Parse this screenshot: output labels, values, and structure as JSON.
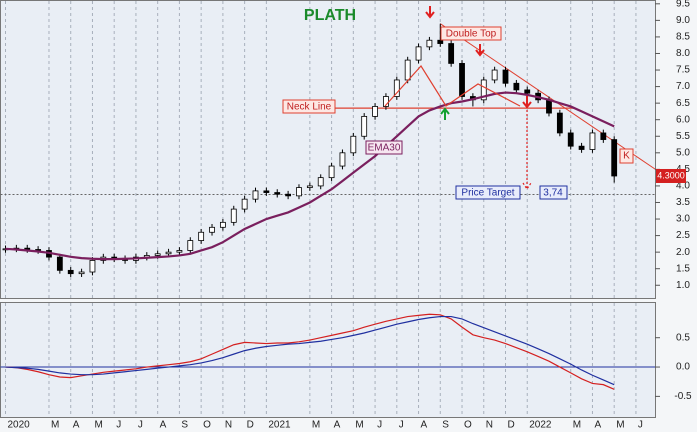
{
  "chart_data": [
    {
      "type": "candlestick",
      "title": "PLATH",
      "x": [
        0,
        0.5,
        1,
        1.5,
        2,
        2.5,
        3,
        3.5,
        4,
        4.5,
        5,
        5.5,
        6,
        6.5,
        7,
        7.5,
        8,
        8.5,
        9,
        9.5,
        10,
        10.5,
        11,
        11.5,
        12,
        12.5,
        13,
        13.5,
        14,
        14.5,
        15,
        15.5,
        16,
        16.5,
        17,
        17.5,
        18,
        18.5,
        19,
        19.5,
        20,
        20.5,
        21,
        21.5,
        22,
        22.5,
        23,
        23.5,
        24,
        24.5,
        25,
        25.5,
        26,
        26.5,
        27,
        27.5,
        28
      ],
      "open": [
        2.08,
        2.1,
        2.12,
        2.08,
        2.05,
        1.85,
        1.45,
        1.35,
        1.4,
        1.75,
        1.85,
        1.8,
        1.75,
        1.85,
        1.9,
        1.95,
        2.0,
        2.05,
        2.35,
        2.6,
        2.75,
        2.9,
        3.3,
        3.6,
        3.85,
        3.8,
        3.75,
        3.7,
        3.95,
        4.0,
        4.25,
        4.6,
        5.0,
        5.5,
        6.1,
        6.4,
        6.7,
        7.2,
        7.8,
        8.2,
        8.4,
        8.3,
        7.7,
        6.7,
        6.6,
        7.2,
        7.5,
        7.1,
        6.9,
        6.8,
        6.6,
        6.2,
        5.6,
        5.2,
        5.1,
        5.6,
        5.4
      ],
      "high": [
        2.2,
        2.22,
        2.22,
        2.18,
        2.15,
        1.95,
        1.55,
        1.5,
        1.85,
        1.95,
        1.95,
        1.9,
        1.95,
        2.0,
        2.05,
        2.1,
        2.15,
        2.45,
        2.7,
        2.85,
        3.0,
        3.4,
        3.7,
        3.95,
        3.95,
        3.9,
        3.85,
        4.05,
        4.1,
        4.35,
        4.7,
        5.1,
        5.6,
        6.2,
        6.5,
        6.8,
        7.3,
        7.9,
        8.3,
        8.5,
        8.9,
        8.4,
        7.8,
        6.8,
        7.3,
        7.6,
        7.6,
        7.2,
        7.0,
        6.9,
        6.7,
        6.3,
        5.7,
        5.3,
        5.7,
        5.7,
        5.5
      ],
      "low": [
        1.98,
        2.0,
        1.98,
        1.95,
        1.75,
        1.35,
        1.25,
        1.25,
        1.3,
        1.65,
        1.7,
        1.65,
        1.65,
        1.75,
        1.8,
        1.85,
        1.9,
        1.95,
        2.25,
        2.5,
        2.65,
        2.8,
        3.2,
        3.5,
        3.7,
        3.65,
        3.6,
        3.6,
        3.85,
        3.9,
        4.15,
        4.5,
        4.9,
        5.4,
        6.0,
        6.3,
        6.6,
        7.1,
        7.7,
        8.1,
        8.2,
        7.6,
        6.6,
        6.4,
        6.5,
        7.1,
        7.0,
        6.8,
        6.7,
        6.5,
        6.1,
        5.5,
        5.1,
        5.0,
        5.0,
        5.3,
        4.1
      ],
      "close": [
        2.1,
        2.12,
        2.08,
        2.05,
        1.85,
        1.45,
        1.35,
        1.4,
        1.75,
        1.85,
        1.8,
        1.75,
        1.85,
        1.9,
        1.95,
        2.0,
        2.05,
        2.35,
        2.6,
        2.75,
        2.9,
        3.3,
        3.6,
        3.85,
        3.8,
        3.75,
        3.7,
        3.95,
        4.0,
        4.25,
        4.6,
        5.0,
        5.5,
        6.1,
        6.4,
        6.7,
        7.2,
        7.8,
        8.2,
        8.4,
        8.3,
        7.7,
        6.7,
        6.6,
        7.2,
        7.5,
        7.1,
        6.9,
        6.8,
        6.6,
        6.2,
        5.6,
        5.2,
        5.1,
        5.6,
        5.4,
        4.3
      ],
      "series": [
        {
          "name": "EMA30",
          "color": "#7a1f5e",
          "values": [
            2.1,
            2.08,
            2.05,
            2.02,
            1.98,
            1.92,
            1.86,
            1.82,
            1.8,
            1.79,
            1.79,
            1.8,
            1.81,
            1.83,
            1.85,
            1.87,
            1.9,
            1.95,
            2.05,
            2.15,
            2.3,
            2.5,
            2.7,
            2.85,
            3.0,
            3.1,
            3.2,
            3.35,
            3.5,
            3.7,
            3.9,
            4.15,
            4.4,
            4.65,
            4.9,
            5.2,
            5.5,
            5.8,
            6.1,
            6.28,
            6.4,
            6.5,
            6.55,
            6.62,
            6.7,
            6.78,
            6.82,
            6.8,
            6.75,
            6.68,
            6.6,
            6.5,
            6.4,
            6.25,
            6.1,
            5.95,
            5.8
          ]
        }
      ],
      "ylim": [
        0.6,
        9.6
      ],
      "yticks": [
        {
          "value": 1,
          "label": "1.0"
        },
        1.5,
        {
          "value": 2,
          "label": "2.0"
        },
        2.5,
        {
          "value": 3,
          "label": "3.0"
        },
        3.5,
        {
          "value": 4,
          "label": "4.0"
        },
        4.5,
        {
          "value": 5,
          "label": "5.0"
        },
        5.5,
        {
          "value": 6,
          "label": "6.0"
        },
        6.5,
        {
          "value": 7,
          "label": "7.0"
        },
        7.5,
        {
          "value": 8,
          "label": "8.0"
        },
        8.5,
        {
          "value": 9,
          "label": "9.0"
        },
        9.5
      ],
      "annotations": [
        "Double Top",
        "Neck Line",
        "Price Target",
        "K"
      ],
      "neck_line": 6.35,
      "price_target": {
        "value": 3.74,
        "label": "3,74"
      },
      "last_price": {
        "value": 4.3,
        "label": "4.3000"
      },
      "trend_line": {
        "x": [
          20.0,
          29.9
        ],
        "y": [
          8.9,
          4.5
        ]
      }
    },
    {
      "type": "line",
      "series": [
        {
          "color": "#d42020",
          "values": [
            0.0,
            -0.01,
            -0.04,
            -0.08,
            -0.13,
            -0.17,
            -0.18,
            -0.15,
            -0.12,
            -0.09,
            -0.07,
            -0.05,
            -0.03,
            0.0,
            0.02,
            0.04,
            0.06,
            0.09,
            0.14,
            0.22,
            0.3,
            0.38,
            0.42,
            0.41,
            0.4,
            0.41,
            0.41,
            0.43,
            0.46,
            0.5,
            0.54,
            0.58,
            0.62,
            0.68,
            0.73,
            0.78,
            0.82,
            0.86,
            0.88,
            0.9,
            0.89,
            0.82,
            0.68,
            0.55,
            0.5,
            0.46,
            0.4,
            0.33,
            0.26,
            0.18,
            0.1,
            0.0,
            -0.1,
            -0.2,
            -0.28,
            -0.3,
            -0.38
          ]
        },
        {
          "color": "#2030a0",
          "values": [
            0.0,
            -0.01,
            -0.02,
            -0.04,
            -0.07,
            -0.1,
            -0.12,
            -0.13,
            -0.13,
            -0.12,
            -0.1,
            -0.08,
            -0.06,
            -0.04,
            -0.02,
            0.0,
            0.02,
            0.04,
            0.07,
            0.11,
            0.16,
            0.22,
            0.28,
            0.32,
            0.35,
            0.37,
            0.39,
            0.4,
            0.42,
            0.44,
            0.47,
            0.5,
            0.54,
            0.58,
            0.63,
            0.68,
            0.73,
            0.77,
            0.81,
            0.84,
            0.86,
            0.86,
            0.82,
            0.74,
            0.67,
            0.6,
            0.53,
            0.46,
            0.39,
            0.31,
            0.23,
            0.14,
            0.05,
            -0.05,
            -0.14,
            -0.22,
            -0.3
          ]
        }
      ],
      "ylim": [
        -0.86,
        1.1
      ],
      "yticks": [
        0.5,
        {
          "value": 0,
          "label": "0.0"
        },
        -0.5
      ],
      "xlim": [
        -0.23,
        29.9
      ],
      "xticks": [
        {
          "value": 0,
          "label": "2020"
        },
        {
          "value": 2,
          "label": "M"
        },
        {
          "value": 3,
          "label": "A"
        },
        {
          "value": 4,
          "label": "M"
        },
        {
          "value": 5,
          "label": "J"
        },
        {
          "value": 6,
          "label": "J"
        },
        {
          "value": 7,
          "label": "A"
        },
        {
          "value": 8,
          "label": "S"
        },
        {
          "value": 9,
          "label": "O"
        },
        {
          "value": 10,
          "label": "N"
        },
        {
          "value": 11,
          "label": "D"
        },
        {
          "value": 12,
          "label": "2021"
        },
        {
          "value": 14,
          "label": "M"
        },
        {
          "value": 15,
          "label": "A"
        },
        {
          "value": 16,
          "label": "M"
        },
        {
          "value": 17,
          "label": "J"
        },
        {
          "value": 18,
          "label": "J"
        },
        {
          "value": 19,
          "label": "A"
        },
        {
          "value": 20,
          "label": "S"
        },
        {
          "value": 21,
          "label": "O"
        },
        {
          "value": 22,
          "label": "N"
        },
        {
          "value": 23,
          "label": "D"
        },
        {
          "value": 24,
          "label": "2022"
        },
        {
          "value": 26,
          "label": "M"
        },
        {
          "value": 27,
          "label": "A"
        },
        {
          "value": 28,
          "label": "M"
        },
        {
          "value": 29,
          "label": "J"
        }
      ]
    }
  ]
}
